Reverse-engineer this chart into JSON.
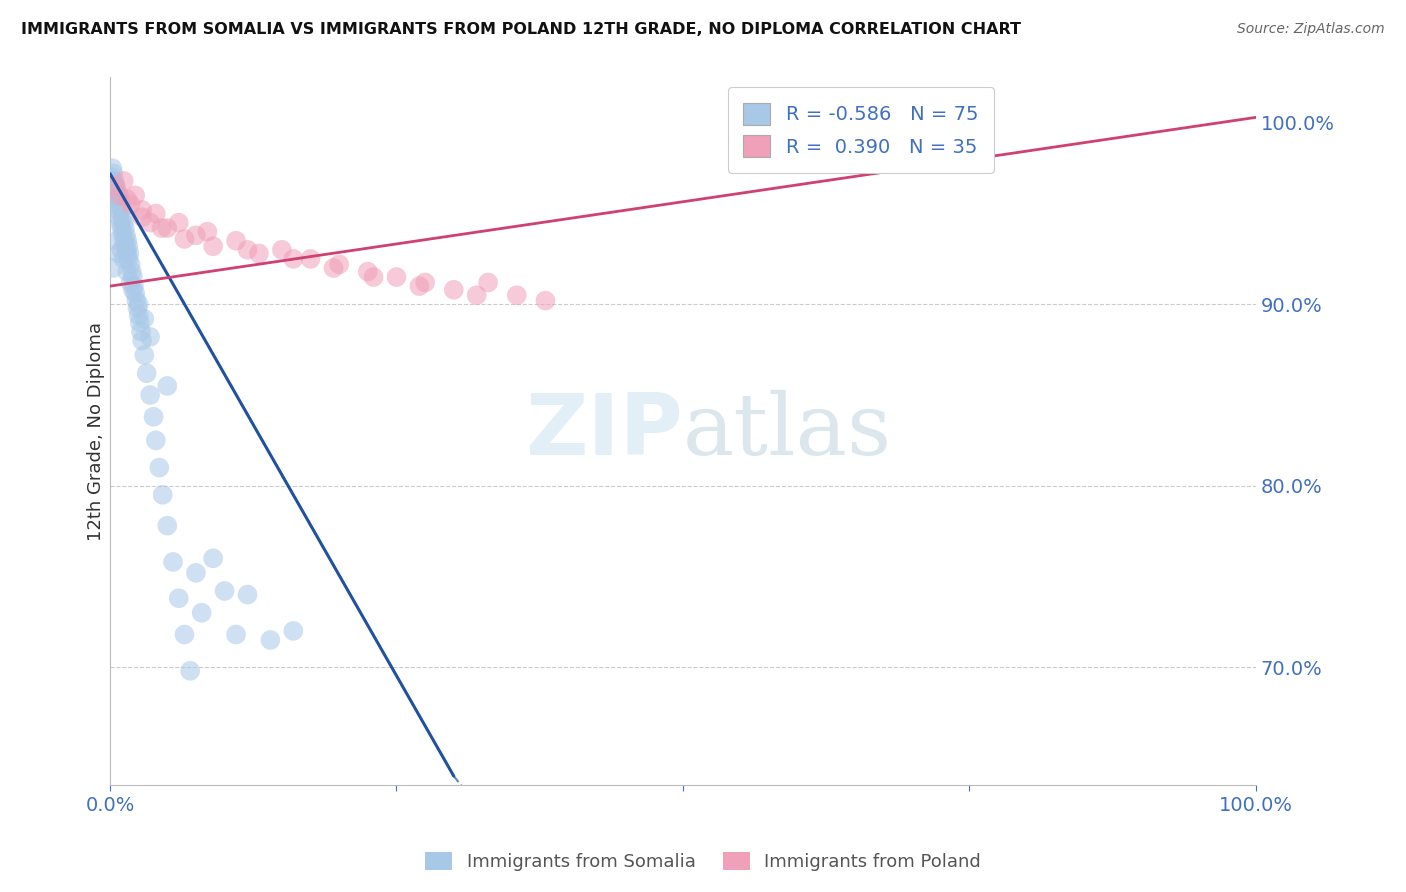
{
  "title": "IMMIGRANTS FROM SOMALIA VS IMMIGRANTS FROM POLAND 12TH GRADE, NO DIPLOMA CORRELATION CHART",
  "source": "Source: ZipAtlas.com",
  "ylabel": "12th Grade, No Diploma",
  "legend_somalia": "Immigrants from Somalia",
  "legend_poland": "Immigrants from Poland",
  "R_somalia": -0.586,
  "N_somalia": 75,
  "R_poland": 0.39,
  "N_poland": 35,
  "color_somalia": "#A8C8E8",
  "color_poland": "#F0A0B8",
  "line_somalia": "#2050A0",
  "line_poland": "#D04070",
  "watermark_zip": "ZIP",
  "watermark_atlas": "atlas",
  "background_color": "#FFFFFF",
  "xlim": [
    0.0,
    1.0
  ],
  "ylim": [
    0.635,
    1.025
  ],
  "yticks": [
    1.0,
    0.9,
    0.8,
    0.7
  ],
  "ytick_labels": [
    "100.0%",
    "90.0%",
    "80.0%",
    "70.0%"
  ],
  "somalia_x": [
    0.001,
    0.002,
    0.002,
    0.003,
    0.003,
    0.004,
    0.004,
    0.005,
    0.005,
    0.006,
    0.006,
    0.007,
    0.007,
    0.008,
    0.008,
    0.009,
    0.009,
    0.01,
    0.01,
    0.011,
    0.011,
    0.012,
    0.012,
    0.013,
    0.013,
    0.014,
    0.014,
    0.015,
    0.015,
    0.016,
    0.016,
    0.017,
    0.018,
    0.019,
    0.02,
    0.021,
    0.022,
    0.023,
    0.024,
    0.025,
    0.026,
    0.027,
    0.028,
    0.03,
    0.032,
    0.035,
    0.038,
    0.04,
    0.043,
    0.046,
    0.05,
    0.055,
    0.06,
    0.065,
    0.07,
    0.075,
    0.08,
    0.09,
    0.1,
    0.11,
    0.12,
    0.14,
    0.16,
    0.003,
    0.006,
    0.008,
    0.01,
    0.012,
    0.015,
    0.018,
    0.02,
    0.025,
    0.03,
    0.035,
    0.05
  ],
  "somalia_y": [
    0.97,
    0.975,
    0.968,
    0.972,
    0.965,
    0.968,
    0.96,
    0.965,
    0.958,
    0.962,
    0.955,
    0.96,
    0.952,
    0.958,
    0.948,
    0.955,
    0.945,
    0.952,
    0.942,
    0.948,
    0.939,
    0.945,
    0.936,
    0.942,
    0.933,
    0.938,
    0.93,
    0.935,
    0.928,
    0.932,
    0.925,
    0.928,
    0.922,
    0.918,
    0.915,
    0.91,
    0.906,
    0.902,
    0.898,
    0.894,
    0.89,
    0.885,
    0.88,
    0.872,
    0.862,
    0.85,
    0.838,
    0.825,
    0.81,
    0.795,
    0.778,
    0.758,
    0.738,
    0.718,
    0.698,
    0.752,
    0.73,
    0.76,
    0.742,
    0.718,
    0.74,
    0.715,
    0.72,
    0.92,
    0.935,
    0.928,
    0.93,
    0.925,
    0.918,
    0.912,
    0.908,
    0.9,
    0.892,
    0.882,
    0.855
  ],
  "poland_x": [
    0.005,
    0.008,
    0.012,
    0.015,
    0.018,
    0.022,
    0.028,
    0.035,
    0.04,
    0.05,
    0.06,
    0.075,
    0.09,
    0.11,
    0.13,
    0.15,
    0.175,
    0.2,
    0.225,
    0.25,
    0.275,
    0.3,
    0.33,
    0.355,
    0.38,
    0.028,
    0.045,
    0.065,
    0.085,
    0.12,
    0.16,
    0.195,
    0.23,
    0.27,
    0.32
  ],
  "poland_y": [
    0.965,
    0.96,
    0.968,
    0.958,
    0.955,
    0.96,
    0.952,
    0.945,
    0.95,
    0.942,
    0.945,
    0.938,
    0.932,
    0.935,
    0.928,
    0.93,
    0.925,
    0.922,
    0.918,
    0.915,
    0.912,
    0.908,
    0.912,
    0.905,
    0.902,
    0.948,
    0.942,
    0.936,
    0.94,
    0.93,
    0.925,
    0.92,
    0.915,
    0.91,
    0.905
  ],
  "line_som_x0": 0.0,
  "line_som_y0": 0.972,
  "line_som_x1": 0.3,
  "line_som_y1": 0.64,
  "line_pol_x0": 0.0,
  "line_pol_y0": 0.91,
  "line_pol_x1": 1.0,
  "line_pol_y1": 1.003
}
